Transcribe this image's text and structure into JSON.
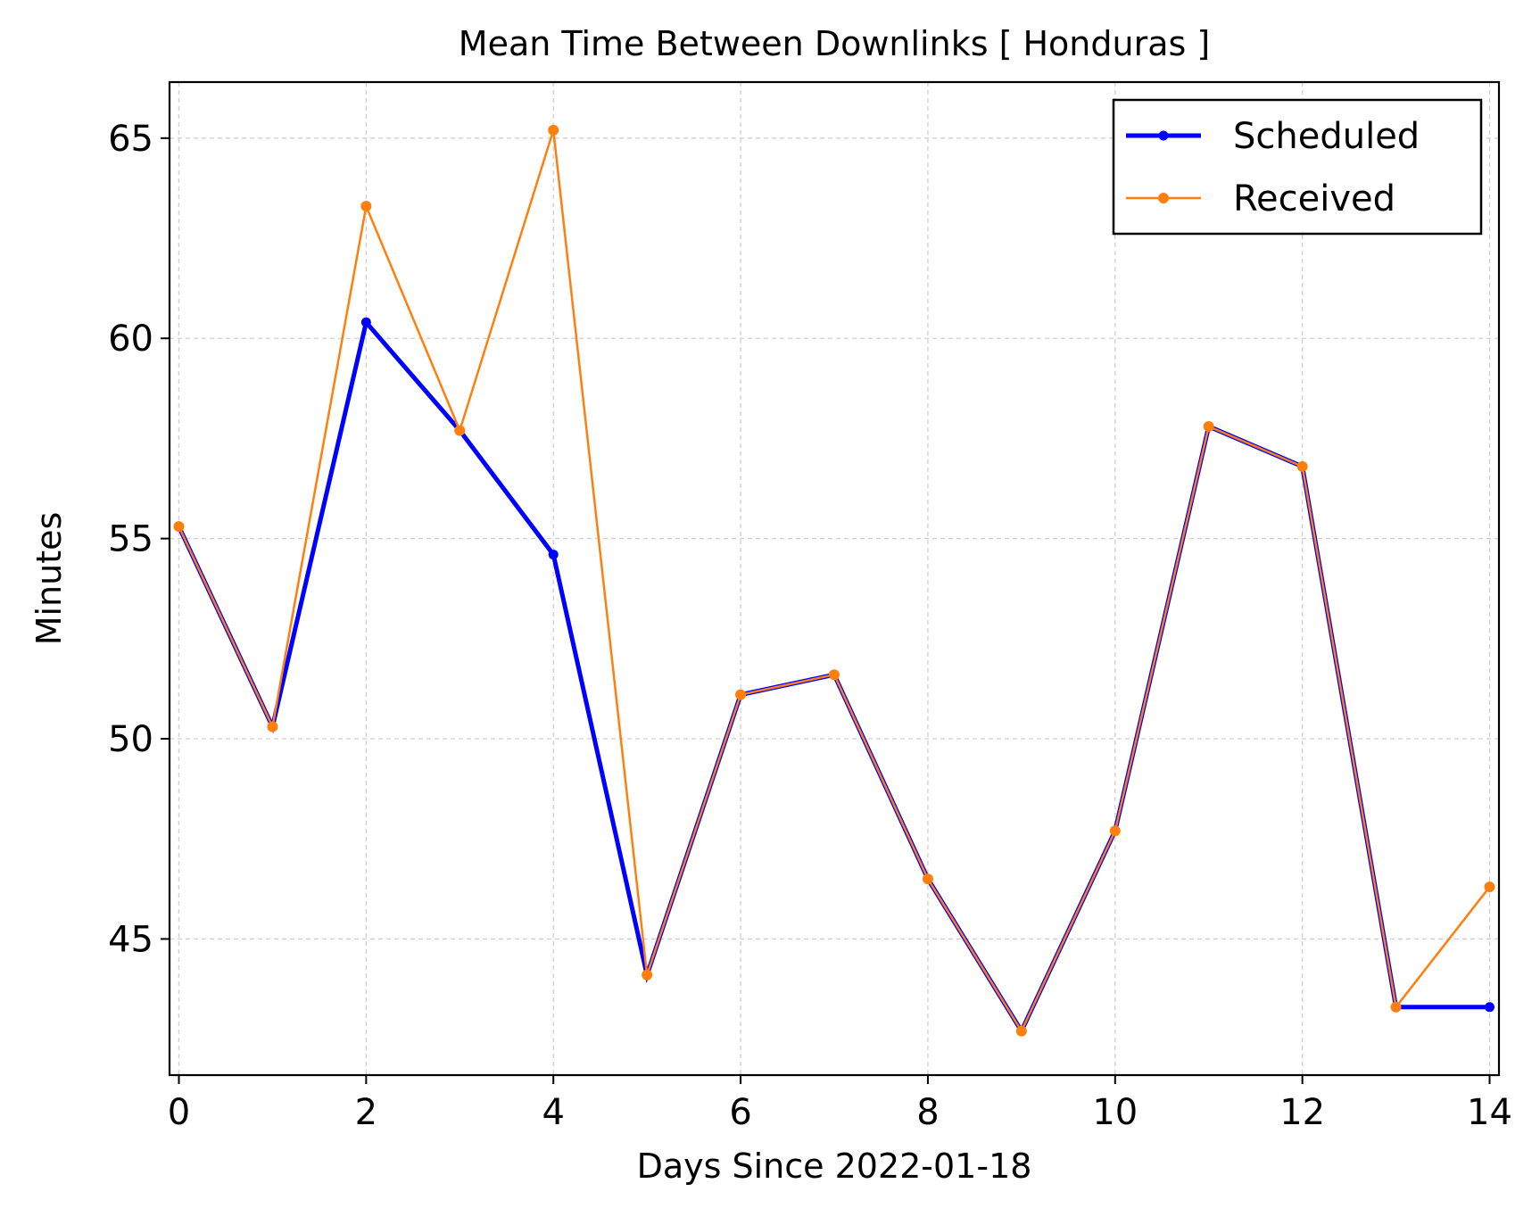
{
  "chart_data": {
    "type": "line",
    "title": "Mean Time Between Downlinks [ Honduras ]",
    "xlabel": "Days Since 2022-01-18",
    "ylabel": "Minutes",
    "x": [
      0,
      1,
      2,
      3,
      4,
      5,
      6,
      7,
      8,
      9,
      10,
      11,
      12,
      13,
      14
    ],
    "xlim": [
      -0.1,
      14.1
    ],
    "ylim": [
      41.6,
      66.4
    ],
    "xticks": [
      0,
      2,
      4,
      6,
      8,
      10,
      12,
      14
    ],
    "yticks": [
      45,
      50,
      55,
      60,
      65
    ],
    "grid": true,
    "legend_position": "top-right",
    "series": [
      {
        "name": "Scheduled",
        "color": "#0000ff",
        "values": [
          55.3,
          50.3,
          60.4,
          57.7,
          54.6,
          44.1,
          51.1,
          51.6,
          46.5,
          42.7,
          47.7,
          57.8,
          56.8,
          43.3,
          43.3
        ]
      },
      {
        "name": "Received",
        "color": "#ff7f0e",
        "values": [
          55.3,
          50.3,
          63.3,
          57.7,
          65.2,
          44.1,
          51.1,
          51.6,
          46.5,
          42.7,
          47.7,
          57.8,
          56.8,
          43.3,
          46.3
        ]
      }
    ]
  }
}
